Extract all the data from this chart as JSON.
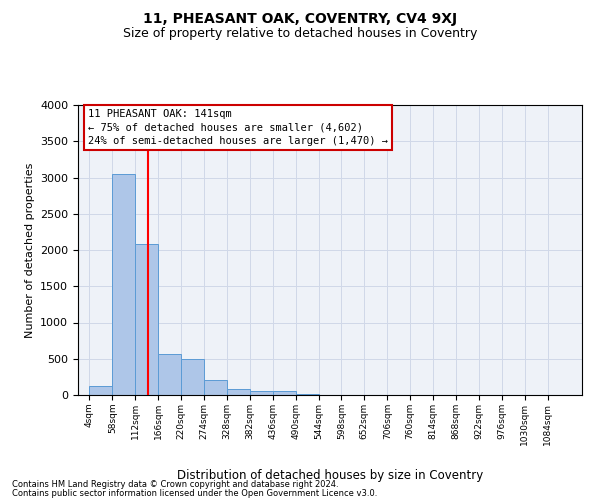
{
  "title": "11, PHEASANT OAK, COVENTRY, CV4 9XJ",
  "subtitle": "Size of property relative to detached houses in Coventry",
  "xlabel": "Distribution of detached houses by size in Coventry",
  "ylabel": "Number of detached properties",
  "bin_labels": [
    "4sqm",
    "58sqm",
    "112sqm",
    "166sqm",
    "220sqm",
    "274sqm",
    "328sqm",
    "382sqm",
    "436sqm",
    "490sqm",
    "544sqm",
    "598sqm",
    "652sqm",
    "706sqm",
    "760sqm",
    "814sqm",
    "868sqm",
    "922sqm",
    "976sqm",
    "1030sqm",
    "1084sqm"
  ],
  "bin_edges": [
    4,
    58,
    112,
    166,
    220,
    274,
    328,
    382,
    436,
    490,
    544,
    598,
    652,
    706,
    760,
    814,
    868,
    922,
    976,
    1030,
    1084
  ],
  "bar_heights": [
    120,
    3050,
    2080,
    560,
    500,
    210,
    80,
    60,
    50,
    10,
    5,
    5,
    5,
    0,
    0,
    0,
    0,
    0,
    0,
    0
  ],
  "bar_color": "#aec6e8",
  "bar_edge_color": "#5b9bd5",
  "grid_color": "#d0d8e8",
  "background_color": "#eef2f8",
  "red_line_x": 141,
  "annotation_text": "11 PHEASANT OAK: 141sqm\n← 75% of detached houses are smaller (4,602)\n24% of semi-detached houses are larger (1,470) →",
  "annotation_box_color": "#ffffff",
  "annotation_box_edge_color": "#cc0000",
  "ylim": [
    0,
    4000
  ],
  "yticks": [
    0,
    500,
    1000,
    1500,
    2000,
    2500,
    3000,
    3500,
    4000
  ],
  "footer_line1": "Contains HM Land Registry data © Crown copyright and database right 2024.",
  "footer_line2": "Contains public sector information licensed under the Open Government Licence v3.0."
}
